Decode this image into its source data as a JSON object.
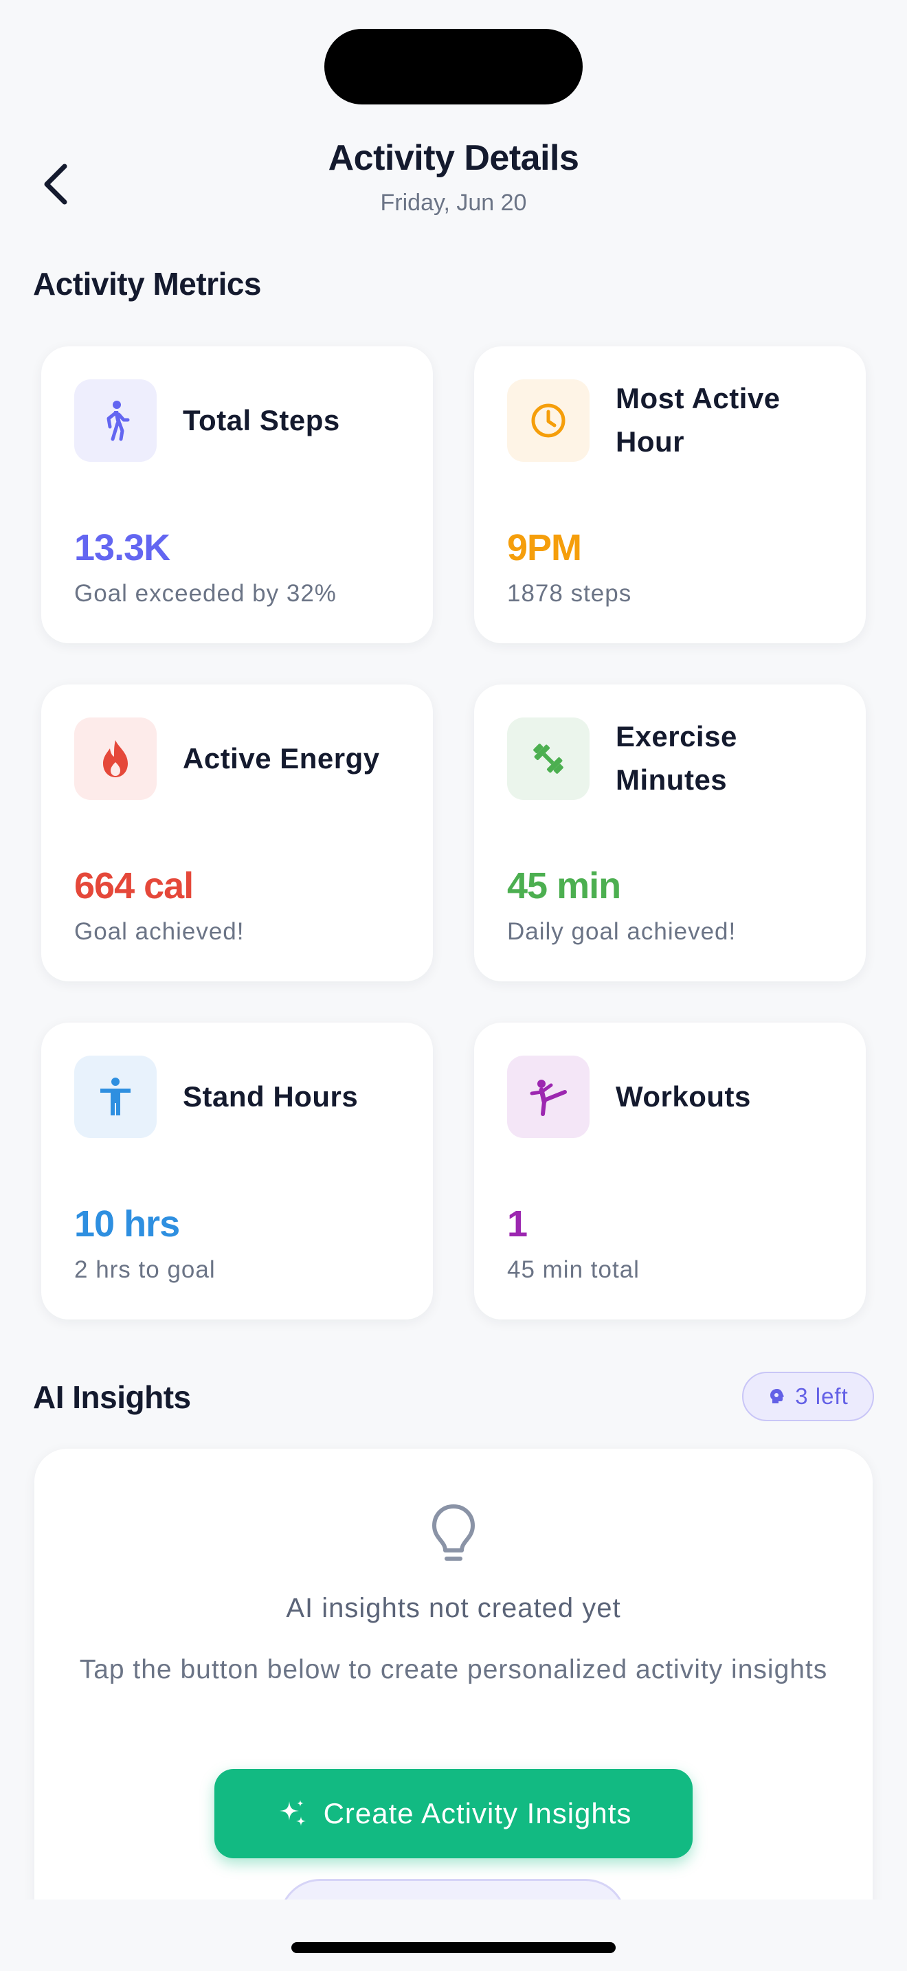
{
  "header": {
    "title": "Activity Details",
    "date": "Friday, Jun 20"
  },
  "metrics": {
    "section_title": "Activity Metrics",
    "cards": [
      {
        "title": "Total Steps",
        "value": "13.3K",
        "sub": "Goal exceeded by 32%",
        "icon": "walking-figure-icon",
        "color": "#6366f1",
        "bg": "#eeeefd"
      },
      {
        "title": "Most Active Hour",
        "value": "9PM",
        "sub": "1878 steps",
        "icon": "clock-icon",
        "color": "#f59e0b",
        "bg": "#fef4e6"
      },
      {
        "title": "Active Energy",
        "value": "664 cal",
        "sub": "Goal achieved!",
        "icon": "flame-icon",
        "color": "#e5483a",
        "bg": "#fdebea"
      },
      {
        "title": "Exercise Minutes",
        "value": "45 min",
        "sub": "Daily goal achieved!",
        "icon": "dumbbell-icon",
        "color": "#4caf50",
        "bg": "#ebf5ec"
      },
      {
        "title": "Stand Hours",
        "value": "10 hrs",
        "sub": "2 hrs to goal",
        "icon": "standing-figure-icon",
        "color": "#2e8fe0",
        "bg": "#e8f2fc"
      },
      {
        "title": "Workouts",
        "value": "1",
        "sub": "45 min total",
        "icon": "martial-arts-icon",
        "color": "#9c27b0",
        "bg": "#f4e6f7"
      }
    ]
  },
  "insights": {
    "section_title": "AI Insights",
    "badge": "3 left",
    "empty_title": "AI insights not created yet",
    "empty_desc": "Tap the button below to create personalized activity insights",
    "create_button": "Create Activity Insights"
  }
}
